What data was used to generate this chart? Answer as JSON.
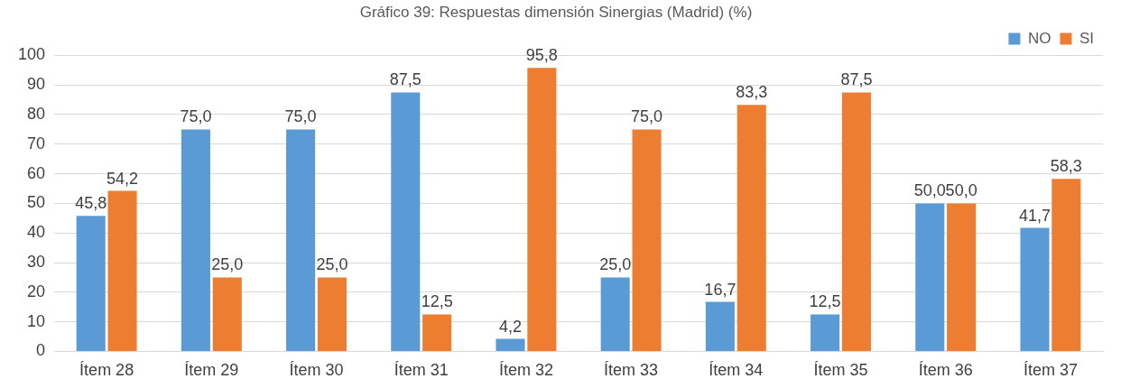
{
  "chart_data": {
    "type": "bar",
    "title": "Gráfico 39: Respuestas dimensión Sinergias (Madrid) (%)",
    "categories": [
      "Ítem 28",
      "Ítem 29",
      "Ítem 30",
      "Ítem 31",
      "Ítem 32",
      "Ítem 33",
      "Ítem 34",
      "Ítem 35",
      "Ítem 36",
      "Ítem 37"
    ],
    "series": [
      {
        "name": "NO",
        "color": "#5b9bd5",
        "values": [
          45.8,
          75.0,
          75.0,
          87.5,
          4.2,
          25.0,
          16.7,
          12.5,
          50.0,
          41.7
        ],
        "value_labels": [
          "45,8",
          "75,0",
          "75,0",
          "87,5",
          "4,2",
          "25,0",
          "16,7",
          "12,5",
          "50,0",
          "41,7"
        ]
      },
      {
        "name": "SI",
        "color": "#ed7d31",
        "values": [
          54.2,
          25.0,
          25.0,
          12.5,
          95.8,
          75.0,
          83.3,
          87.5,
          50.0,
          58.3
        ],
        "value_labels": [
          "54,2",
          "25,0",
          "25,0",
          "12,5",
          "95,8",
          "75,0",
          "83,3",
          "87,5",
          "50,0",
          "58,3"
        ]
      }
    ],
    "ylim": [
      0,
      100
    ],
    "yticks": [
      0,
      10,
      20,
      30,
      40,
      50,
      60,
      70,
      80,
      90,
      100
    ],
    "grid": "y",
    "legend": "top right"
  }
}
